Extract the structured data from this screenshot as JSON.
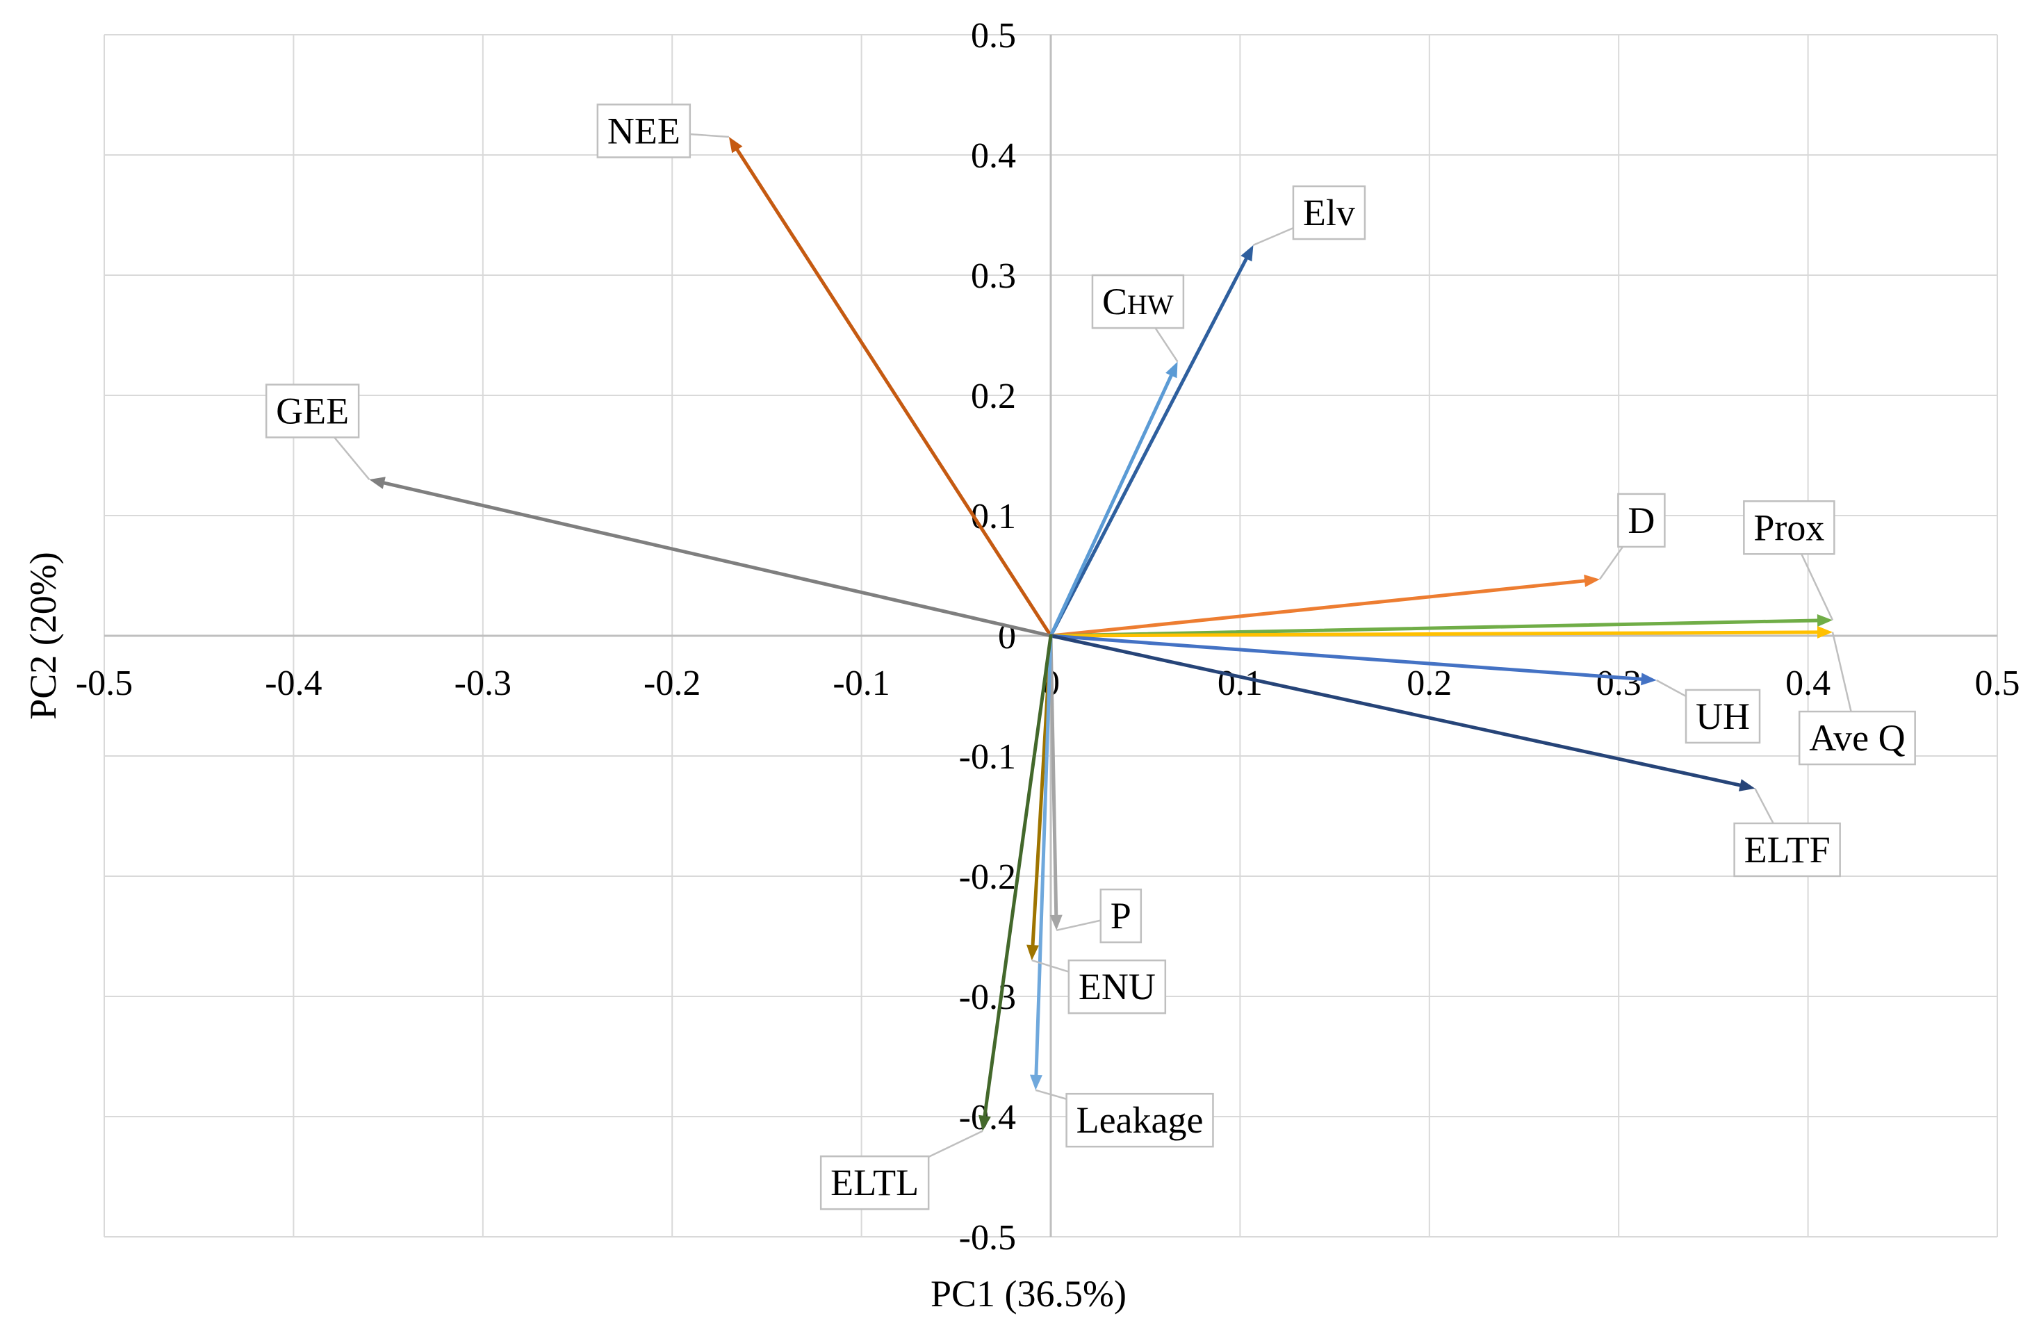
{
  "chart_data": {
    "type": "scatter",
    "subtype": "biplot-vectors",
    "title": "",
    "xlabel": "PC1 (36.5%)",
    "ylabel": "PC2 (20%)",
    "xlim": [
      -0.5,
      0.5
    ],
    "ylim": [
      -0.5,
      0.5
    ],
    "xticks": [
      -0.5,
      -0.4,
      -0.3,
      -0.2,
      -0.1,
      0,
      0.1,
      0.2,
      0.3,
      0.4,
      0.5
    ],
    "yticks": [
      -0.5,
      -0.4,
      -0.3,
      -0.2,
      -0.1,
      0,
      0.1,
      0.2,
      0.3,
      0.4,
      0.5
    ],
    "xtick_labels": [
      "-0.5",
      "-0.4",
      "-0.3",
      "-0.2",
      "-0.1",
      "0",
      "0.1",
      "0.2",
      "0.3",
      "0.4",
      "0.5"
    ],
    "ytick_labels": [
      "-0.5",
      "-0.4",
      "-0.3",
      "-0.2",
      "-0.1",
      "0",
      "0.1",
      "0.2",
      "0.3",
      "0.4",
      "0.5"
    ],
    "grid": true,
    "legend": "none",
    "series": [
      {
        "name": "NEE",
        "label_html": "NEE",
        "x": -0.17,
        "y": 0.415,
        "color": "#c55a11",
        "label_at": [
          -0.215,
          0.42
        ]
      },
      {
        "name": "GEE",
        "label_html": "GEE",
        "x": -0.36,
        "y": 0.13,
        "color": "#7f7f7f",
        "label_at": [
          -0.39,
          0.187
        ]
      },
      {
        "name": "Elv",
        "label_html": "Elv",
        "x": 0.107,
        "y": 0.325,
        "color": "#2e5f9e",
        "label_at": [
          0.147,
          0.352
        ]
      },
      {
        "name": "CHW",
        "label_html": "CHW",
        "x": 0.067,
        "y": 0.228,
        "color": "#5b9bd5",
        "label_at": [
          0.046,
          0.278
        ]
      },
      {
        "name": "D",
        "label_html": "D",
        "x": 0.29,
        "y": 0.047,
        "color": "#ed7d31",
        "label_at": [
          0.312,
          0.096
        ]
      },
      {
        "name": "Prox",
        "label_html": "Prox",
        "x": 0.413,
        "y": 0.013,
        "color": "#70ad47",
        "label_at": [
          0.39,
          0.09
        ]
      },
      {
        "name": "Ave Q",
        "label_html": "Ave Q",
        "x": 0.413,
        "y": 0.003,
        "color": "#ffc000",
        "label_at": [
          0.426,
          -0.085
        ]
      },
      {
        "name": "UH",
        "label_html": "UH",
        "x": 0.32,
        "y": -0.037,
        "color": "#4472c4",
        "label_at": [
          0.355,
          -0.067
        ]
      },
      {
        "name": "ELTF",
        "label_html": "ELTF",
        "x": 0.372,
        "y": -0.127,
        "color": "#264478",
        "label_at": [
          0.389,
          -0.178
        ]
      },
      {
        "name": "P",
        "label_html": "P",
        "x": 0.003,
        "y": -0.245,
        "color": "#a5a5a5",
        "label_at": [
          0.037,
          -0.233
        ]
      },
      {
        "name": "ENU",
        "label_html": "ENU",
        "x": -0.01,
        "y": -0.27,
        "color": "#9e7400",
        "label_at": [
          0.035,
          -0.292
        ]
      },
      {
        "name": "Leakage",
        "label_html": "Leakage",
        "x": -0.008,
        "y": -0.378,
        "color": "#6fa8dc",
        "label_at": [
          0.047,
          -0.403
        ]
      },
      {
        "name": "ELTL",
        "label_html": "ELTL",
        "x": -0.036,
        "y": -0.412,
        "color": "#43682b",
        "label_at": [
          -0.093,
          -0.455
        ]
      }
    ]
  }
}
